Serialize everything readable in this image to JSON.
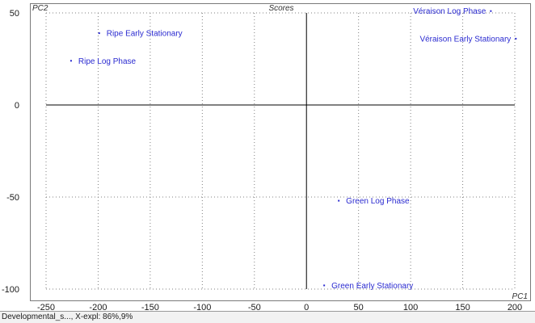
{
  "chart_data": {
    "type": "scatter",
    "title": "Scores",
    "xlabel": "PC1",
    "ylabel": "PC2",
    "xlim": [
      -250,
      200
    ],
    "ylim": [
      -100,
      50
    ],
    "xticks": [
      -250,
      -200,
      -150,
      -100,
      -50,
      0,
      50,
      100,
      150,
      200
    ],
    "yticks": [
      50,
      0,
      -50,
      -100
    ],
    "grid": true,
    "points": [
      {
        "label": "Véraison Log Phase",
        "x": 177,
        "y": 51
      },
      {
        "label": "Véraison Early Stationary",
        "x": 201,
        "y": 36
      },
      {
        "label": "Ripe Early Stationary",
        "x": -199,
        "y": 39
      },
      {
        "label": "Ripe Log Phase",
        "x": -226,
        "y": 24
      },
      {
        "label": "Green Log Phase",
        "x": 31,
        "y": -52
      },
      {
        "label": "Green Early Stationary",
        "x": 17,
        "y": -98
      }
    ],
    "colors": {
      "points": "#2a2ad0",
      "axes": "#000000",
      "grid": "#808080"
    }
  },
  "status": {
    "text": "Developmental_s..., X-expl: 86%,9%"
  }
}
